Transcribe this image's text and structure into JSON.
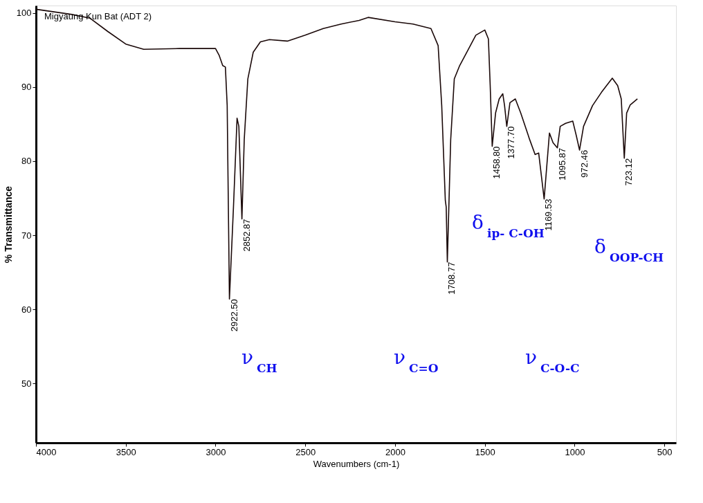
{
  "chart_data": {
    "type": "line",
    "xlabel": "Wavenumbers (cm-1)",
    "ylabel": "% Transmittance",
    "xlim": [
      4000,
      435
    ],
    "xticks": [
      4000,
      3500,
      3000,
      2500,
      2000,
      1500,
      1000,
      500
    ],
    "ylim": [
      42,
      101
    ],
    "yticks": [
      50,
      60,
      70,
      80,
      90,
      100
    ],
    "grid": false,
    "marker": "none",
    "line_style": "solid",
    "x": [
      4000,
      3800,
      3700,
      3600,
      3500,
      3400,
      3200,
      3000,
      2980,
      2960,
      2945,
      2935,
      2922.5,
      2900,
      2880,
      2870,
      2852.87,
      2840,
      2820,
      2790,
      2750,
      2700,
      2600,
      2500,
      2400,
      2300,
      2200,
      2150,
      2000,
      1900,
      1800,
      1760,
      1740,
      1720,
      1715,
      1708.77,
      1690,
      1670,
      1640,
      1600,
      1550,
      1500,
      1480,
      1470,
      1458.8,
      1440,
      1420,
      1400,
      1390,
      1377.7,
      1360,
      1330,
      1300,
      1250,
      1220,
      1200,
      1169.53,
      1140,
      1120,
      1095.87,
      1080,
      1050,
      1010,
      990,
      972.46,
      950,
      900,
      850,
      790,
      760,
      740,
      723.12,
      710,
      690,
      650
    ],
    "series": [
      {
        "color": "#1a0808",
        "values": [
          100.5,
          99.8,
          99.3,
          97.5,
          95.8,
          95.1,
          95.2,
          95.2,
          94.3,
          92.9,
          92.7,
          87.5,
          61.4,
          73.8,
          85.8,
          84.7,
          72.2,
          82.9,
          91.1,
          94.7,
          96.1,
          96.4,
          96.2,
          97,
          97.9,
          98.5,
          99,
          99.4,
          98.8,
          98.5,
          97.9,
          95.6,
          87.5,
          74.7,
          73.8,
          66.4,
          82.9,
          91.1,
          92.9,
          94.7,
          97,
          97.7,
          96.5,
          90.2,
          82,
          86.5,
          88.4,
          89.1,
          87.5,
          84.7,
          87.9,
          88.4,
          86.5,
          82.9,
          80.9,
          81.1,
          74.9,
          83.8,
          82.5,
          81.8,
          84.7,
          85.1,
          85.4,
          83.4,
          81.5,
          84.7,
          87.5,
          89.3,
          91.2,
          90.2,
          88.4,
          80.4,
          86.5,
          87.6,
          88.4
        ]
      }
    ],
    "annotations": [
      "Migyaung Kun Bat (ADT 2)",
      {
        "text": "2922.50",
        "x": 2922.5,
        "y": 61.4
      },
      {
        "text": "2852.87",
        "x": 2852.87,
        "y": 72.2
      },
      {
        "text": "1708.77",
        "x": 1708.77,
        "y": 66.4
      },
      {
        "text": "1458.80",
        "x": 1458.8,
        "y": 82
      },
      {
        "text": "1377.70",
        "x": 1377.7,
        "y": 84.7
      },
      {
        "text": "1169.53",
        "x": 1169.53,
        "y": 74.9
      },
      {
        "text": "1095.87",
        "x": 1095.87,
        "y": 81.8
      },
      {
        "text": "972.46",
        "x": 972.46,
        "y": 81.5
      },
      {
        "text": "723.12",
        "x": 723.12,
        "y": 80.4
      },
      "ν$_{CH}$",
      "ν$_{C=O}$",
      "ν$_{C-O-C}$",
      "δ$_{ip- C-OH}$",
      "δ$_{OOP-CH}$"
    ]
  }
}
